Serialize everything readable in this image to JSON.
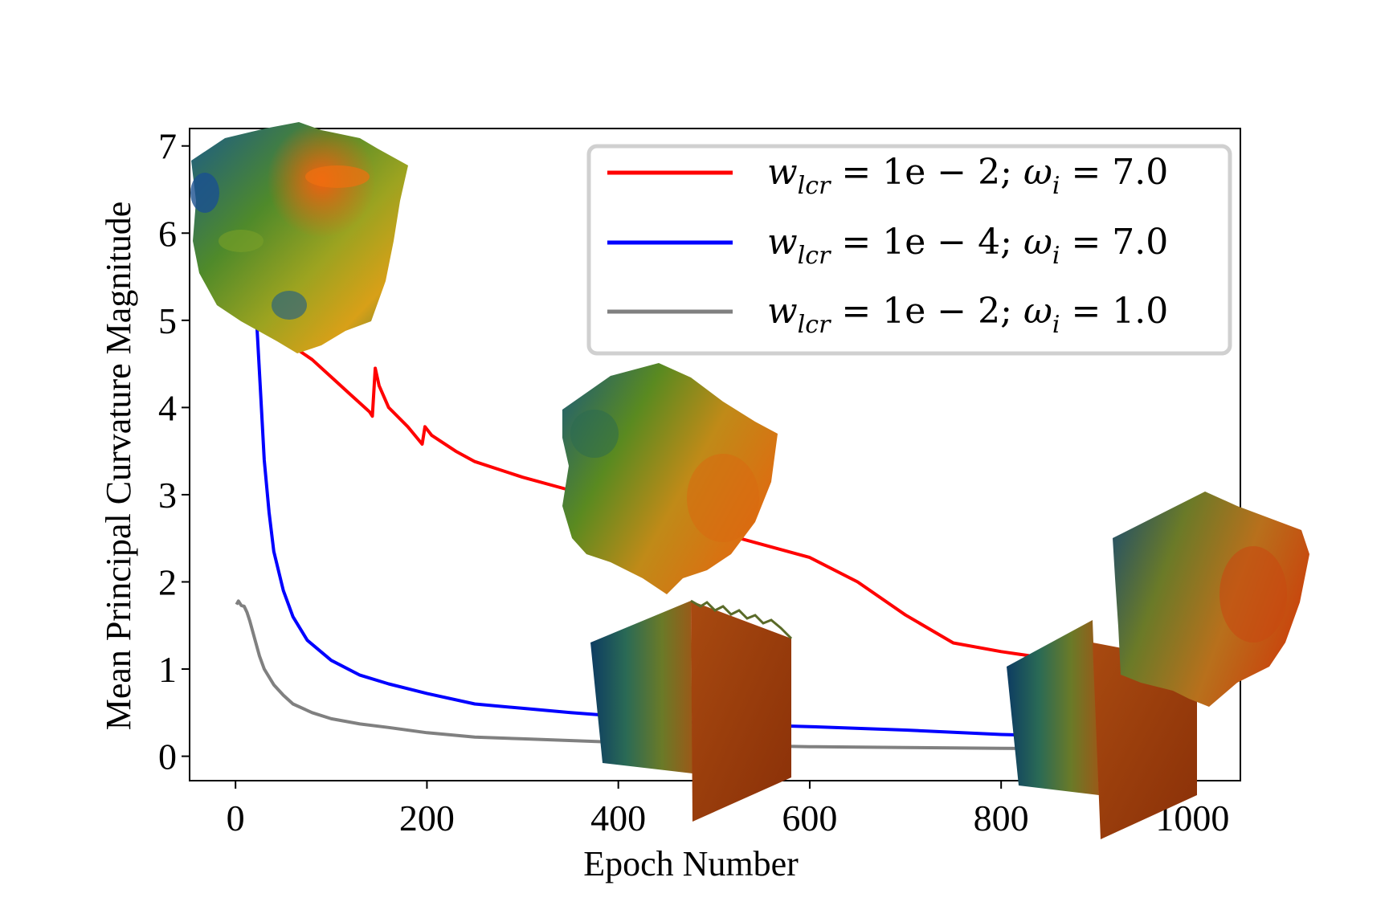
{
  "chart_data": {
    "type": "line",
    "xlabel": "Epoch Number",
    "ylabel": "Mean Principal Curvature Magnitude",
    "xlim": [
      -48,
      1050
    ],
    "ylim": [
      -0.28,
      7.2
    ],
    "xticks": [
      0,
      200,
      400,
      600,
      800,
      1000
    ],
    "yticks": [
      0,
      1,
      2,
      3,
      4,
      5,
      6,
      7
    ],
    "grid": false,
    "legend_position": "top-right",
    "series": [
      {
        "name": "w_lcr = 1e − 2; ω_i = 7.0",
        "legend": {
          "w": "w",
          "w_sub": "lcr",
          "eq1": " = 1e − 2; ",
          "omega": "ω",
          "omega_sub": "i",
          "eq2": " = 7.0"
        },
        "color": "#ff0000",
        "points": [
          [
            40,
            5.0
          ],
          [
            60,
            4.7
          ],
          [
            80,
            4.55
          ],
          [
            100,
            4.35
          ],
          [
            120,
            4.15
          ],
          [
            140,
            3.95
          ],
          [
            143,
            3.9
          ],
          [
            146,
            4.45
          ],
          [
            150,
            4.25
          ],
          [
            160,
            4.0
          ],
          [
            180,
            3.78
          ],
          [
            195,
            3.58
          ],
          [
            198,
            3.78
          ],
          [
            205,
            3.68
          ],
          [
            230,
            3.5
          ],
          [
            250,
            3.38
          ],
          [
            300,
            3.2
          ],
          [
            350,
            3.05
          ],
          [
            400,
            2.9
          ],
          [
            450,
            2.75
          ],
          [
            500,
            2.58
          ],
          [
            550,
            2.43
          ],
          [
            600,
            2.28
          ],
          [
            650,
            2.0
          ],
          [
            700,
            1.62
          ],
          [
            750,
            1.3
          ],
          [
            800,
            1.2
          ],
          [
            850,
            1.12
          ]
        ]
      },
      {
        "name": "w_lcr = 1e − 4; ω_i = 7.0",
        "legend": {
          "w": "w",
          "w_sub": "lcr",
          "eq1": " = 1e − 4; ",
          "omega": "ω",
          "omega_sub": "i",
          "eq2": " = 7.0"
        },
        "color": "#0000ff",
        "points": [
          [
            22,
            5.0
          ],
          [
            26,
            4.2
          ],
          [
            30,
            3.4
          ],
          [
            35,
            2.8
          ],
          [
            40,
            2.35
          ],
          [
            50,
            1.9
          ],
          [
            60,
            1.6
          ],
          [
            75,
            1.33
          ],
          [
            100,
            1.1
          ],
          [
            130,
            0.93
          ],
          [
            160,
            0.83
          ],
          [
            200,
            0.72
          ],
          [
            250,
            0.6
          ],
          [
            300,
            0.55
          ],
          [
            350,
            0.5
          ],
          [
            400,
            0.46
          ],
          [
            500,
            0.37
          ],
          [
            600,
            0.34
          ],
          [
            700,
            0.3
          ],
          [
            800,
            0.25
          ],
          [
            900,
            0.22
          ],
          [
            1000,
            0.2
          ]
        ]
      },
      {
        "name": "w_lcr = 1e − 2; ω_i = 1.0",
        "legend": {
          "w": "w",
          "w_sub": "lcr",
          "eq1": " = 1e − 2; ",
          "omega": "ω",
          "omega_sub": "i",
          "eq2": " = 1.0"
        },
        "color": "#808080",
        "points": [
          [
            1,
            1.74
          ],
          [
            3,
            1.78
          ],
          [
            6,
            1.73
          ],
          [
            9,
            1.72
          ],
          [
            12,
            1.65
          ],
          [
            15,
            1.55
          ],
          [
            20,
            1.35
          ],
          [
            25,
            1.15
          ],
          [
            30,
            1.0
          ],
          [
            40,
            0.82
          ],
          [
            50,
            0.7
          ],
          [
            60,
            0.6
          ],
          [
            80,
            0.5
          ],
          [
            100,
            0.43
          ],
          [
            130,
            0.37
          ],
          [
            160,
            0.33
          ],
          [
            200,
            0.27
          ],
          [
            250,
            0.22
          ],
          [
            300,
            0.2
          ],
          [
            400,
            0.16
          ],
          [
            500,
            0.13
          ],
          [
            600,
            0.11
          ],
          [
            700,
            0.1
          ],
          [
            800,
            0.09
          ],
          [
            900,
            0.085
          ],
          [
            1000,
            0.07
          ]
        ]
      }
    ]
  }
}
